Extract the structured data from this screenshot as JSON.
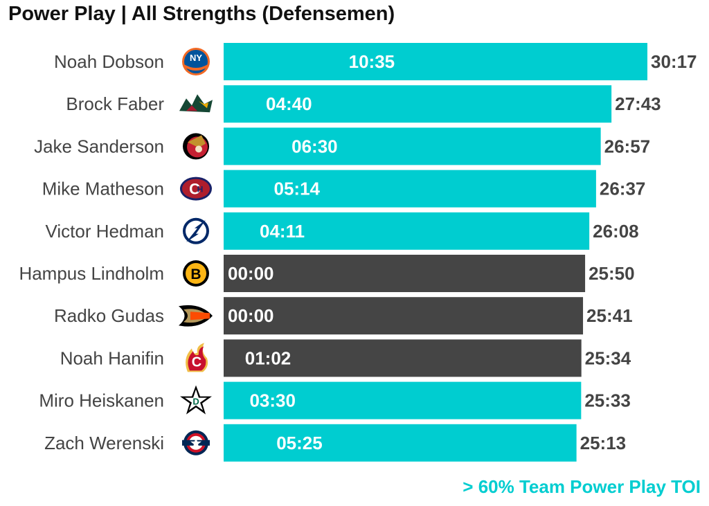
{
  "chart_data": {
    "type": "bar",
    "orientation": "horizontal",
    "title": "Power Play | All Strengths (Defensemen)",
    "metric": "Time on ice (mm:ss)",
    "players": [
      {
        "name": "Noah Dobson",
        "team_icon": "new-york-islanders-logo-icon",
        "total": "30:17",
        "pp": "10:35",
        "highlight": true
      },
      {
        "name": "Brock Faber",
        "team_icon": "minnesota-wild-logo-icon",
        "total": "27:43",
        "pp": "04:40",
        "highlight": true
      },
      {
        "name": "Jake Sanderson",
        "team_icon": "ottawa-senators-logo-icon",
        "total": "26:57",
        "pp": "06:30",
        "highlight": true
      },
      {
        "name": "Mike Matheson",
        "team_icon": "montreal-canadiens-logo-icon",
        "total": "26:37",
        "pp": "05:14",
        "highlight": true
      },
      {
        "name": "Victor Hedman",
        "team_icon": "tampa-bay-lightning-logo-icon",
        "total": "26:08",
        "pp": "04:11",
        "highlight": true
      },
      {
        "name": "Hampus Lindholm",
        "team_icon": "boston-bruins-logo-icon",
        "total": "25:50",
        "pp": "00:00",
        "highlight": false
      },
      {
        "name": "Radko Gudas",
        "team_icon": "anaheim-ducks-logo-icon",
        "total": "25:41",
        "pp": "00:00",
        "highlight": false
      },
      {
        "name": "Noah Hanifin",
        "team_icon": "calgary-flames-logo-icon",
        "total": "25:34",
        "pp": "01:02",
        "highlight": false
      },
      {
        "name": "Miro Heiskanen",
        "team_icon": "dallas-stars-logo-icon",
        "total": "25:33",
        "pp": "03:30",
        "highlight": true
      },
      {
        "name": "Zach Werenski",
        "team_icon": "columbus-blue-jackets-logo-icon",
        "total": "25:13",
        "pp": "05:25",
        "highlight": true
      }
    ],
    "xlim_minutes": [
      0,
      30.283
    ],
    "legend": "> 60% Team Power Play TOI",
    "colors": {
      "highlight": "#00cdd0",
      "other": "#454545",
      "bar_text": "#ffffff",
      "total_text": "#444444"
    }
  }
}
